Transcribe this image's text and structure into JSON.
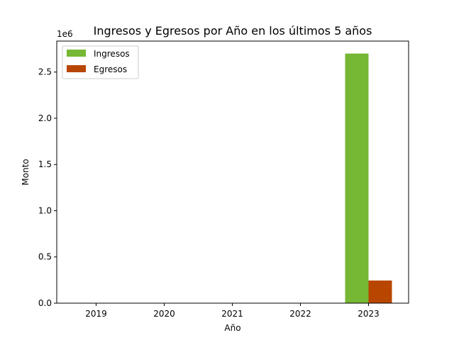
{
  "chart_data": {
    "type": "bar",
    "title": "Ingresos y Egresos por Año en los últimos 5 años",
    "xlabel": "Año",
    "ylabel": "Monto",
    "y_offset_label": "1e6",
    "categories": [
      "2019",
      "2020",
      "2021",
      "2022",
      "2023"
    ],
    "series": [
      {
        "name": "Ingresos",
        "color": "#76b733",
        "values": [
          0,
          0,
          0,
          0,
          2700000
        ]
      },
      {
        "name": "Egresos",
        "color": "#b84600",
        "values": [
          0,
          0,
          0,
          0,
          245000
        ]
      }
    ],
    "ylim": [
      0,
      2835000
    ],
    "y_ticks": [
      0,
      500000,
      1000000,
      1500000,
      2000000,
      2500000
    ],
    "y_tick_labels": [
      "0.0",
      "0.5",
      "1.0",
      "1.5",
      "2.0",
      "2.5"
    ],
    "legend_position": "upper-left",
    "grid": false
  }
}
